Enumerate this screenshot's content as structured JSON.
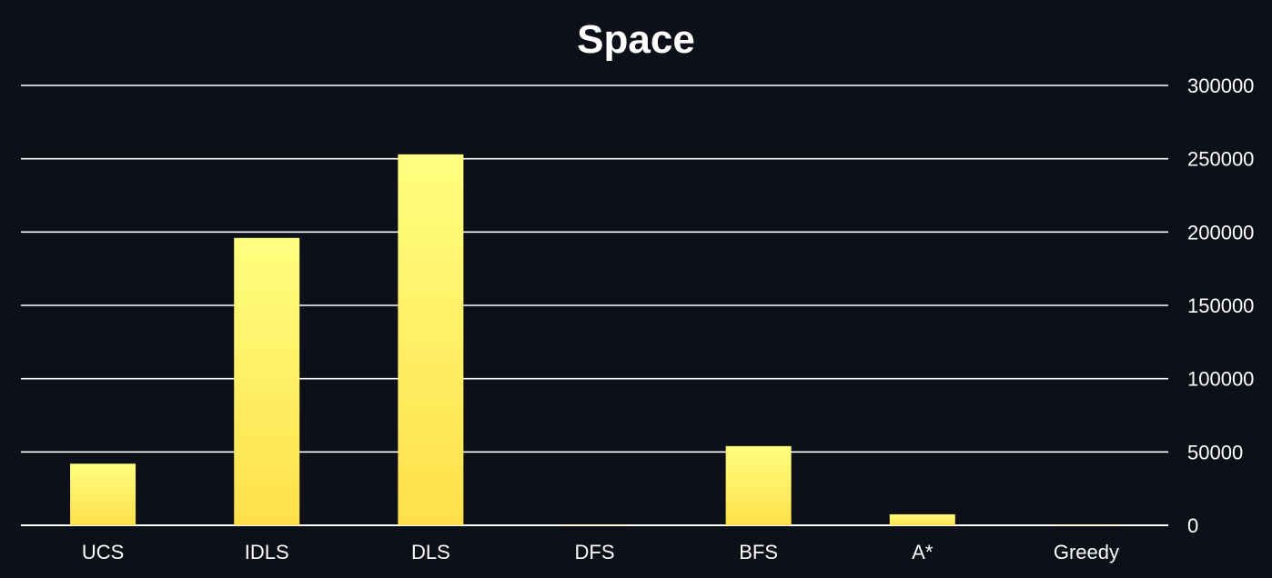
{
  "chart_data": {
    "type": "bar",
    "title": "Space",
    "xlabel": "",
    "ylabel": "",
    "categories": [
      "UCS",
      "IDLS",
      "DLS",
      "DFS",
      "BFS",
      "A*",
      "Greedy"
    ],
    "values": [
      42000,
      196000,
      253000,
      200,
      54000,
      7500,
      200
    ],
    "ylim": [
      0,
      300000
    ],
    "yticks": [
      "0",
      "50000",
      "100000",
      "150000",
      "200000",
      "250000",
      "300000"
    ],
    "y_axis_side": "right",
    "grid": true,
    "legend": "none"
  },
  "colors": {
    "background": "#0d1018",
    "grid": "#ffffff",
    "text": "#ffffff",
    "bar_top": "#ffff80",
    "bar_bottom": "#ffe04a"
  }
}
